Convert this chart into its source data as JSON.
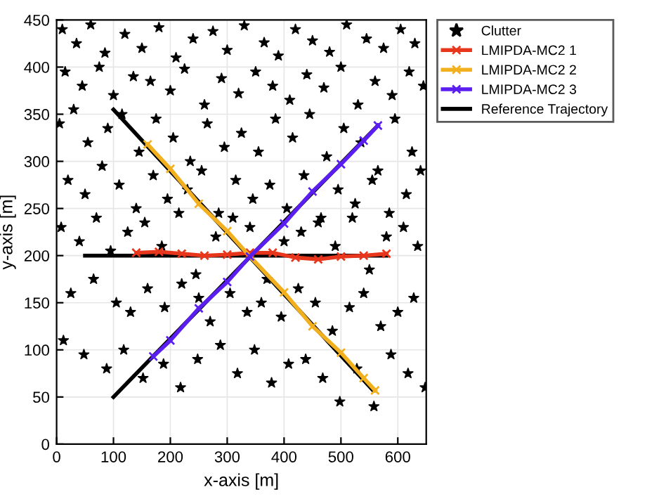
{
  "chart_data": {
    "type": "scatter",
    "xlabel": "x-axis [m]",
    "ylabel": "y-axis [m]",
    "xlim": [
      0,
      650
    ],
    "ylim": [
      0,
      450
    ],
    "xticks": [
      0,
      100,
      200,
      300,
      400,
      500,
      600
    ],
    "yticks": [
      0,
      50,
      100,
      150,
      200,
      250,
      300,
      350,
      400,
      450
    ],
    "grid": true,
    "legend": "top right",
    "series": [
      {
        "name": "Clutter",
        "marker": "star",
        "color": "#000000",
        "x": [
          10,
          35,
          60,
          85,
          120,
          150,
          180,
          210,
          240,
          275,
          300,
          330,
          365,
          390,
          420,
          450,
          480,
          510,
          545,
          575,
          605,
          630,
          15,
          45,
          75,
          100,
          135,
          165,
          200,
          225,
          260,
          290,
          320,
          350,
          380,
          410,
          440,
          470,
          500,
          530,
          560,
          590,
          620,
          645,
          5,
          30,
          55,
          90,
          115,
          145,
          175,
          205,
          235,
          265,
          295,
          325,
          355,
          385,
          415,
          445,
          475,
          505,
          535,
          565,
          595,
          625,
          20,
          50,
          80,
          110,
          140,
          170,
          195,
          230,
          255,
          285,
          315,
          345,
          375,
          405,
          435,
          465,
          495,
          525,
          555,
          585,
          615,
          640,
          8,
          40,
          70,
          95,
          125,
          155,
          185,
          215,
          245,
          280,
          310,
          340,
          370,
          400,
          430,
          460,
          490,
          520,
          550,
          580,
          610,
          635,
          25,
          65,
          105,
          130,
          160,
          190,
          220,
          250,
          270,
          305,
          335,
          360,
          395,
          425,
          455,
          485,
          515,
          540,
          570,
          600,
          628,
          12,
          48,
          88,
          118,
          152,
          188,
          218,
          248,
          288,
          318,
          348,
          378,
          408,
          438,
          468,
          498,
          528,
          558,
          588,
          618,
          648
        ],
        "values": [
          440,
          425,
          445,
          415,
          435,
          420,
          442,
          410,
          430,
          438,
          418,
          444,
          426,
          412,
          440,
          428,
          416,
          445,
          430,
          420,
          440,
          425,
          395,
          380,
          400,
          370,
          390,
          385,
          375,
          398,
          360,
          388,
          372,
          395,
          380,
          365,
          392,
          378,
          400,
          360,
          385,
          370,
          395,
          380,
          340,
          355,
          320,
          335,
          350,
          310,
          345,
          325,
          300,
          340,
          315,
          330,
          310,
          345,
          325,
          350,
          305,
          335,
          320,
          290,
          345,
          310,
          280,
          265,
          295,
          275,
          250,
          285,
          260,
          270,
          290,
          245,
          280,
          260,
          275,
          250,
          285,
          240,
          270,
          255,
          280,
          245,
          265,
          290,
          230,
          215,
          240,
          205,
          225,
          235,
          210,
          245,
          180,
          220,
          240,
          230,
          175,
          215,
          225,
          235,
          210,
          240,
          185,
          220,
          230,
          210,
          160,
          175,
          150,
          140,
          165,
          145,
          170,
          155,
          130,
          160,
          140,
          150,
          135,
          165,
          150,
          120,
          145,
          160,
          125,
          140,
          155,
          110,
          95,
          80,
          100,
          70,
          85,
          60,
          90,
          105,
          75,
          100,
          65,
          85,
          90,
          70,
          45,
          80,
          40,
          95,
          75,
          60
        ]
      },
      {
        "name": "LMIPDA-MC2 1",
        "type": "line",
        "marker": "cross",
        "color": "#e8361c",
        "x": [
          140,
          180,
          220,
          260,
          300,
          340,
          380,
          420,
          460,
          500,
          540,
          580
        ],
        "values": [
          203,
          204,
          202,
          200,
          201,
          203,
          203,
          198,
          196,
          199,
          200,
          202
        ]
      },
      {
        "name": "LMIPDA-MC2 2",
        "type": "line",
        "marker": "cross",
        "color": "#f2b01e",
        "x": [
          160,
          200,
          250,
          300,
          340,
          400,
          450,
          500,
          540,
          560
        ],
        "values": [
          318,
          292,
          255,
          226,
          199,
          161,
          125,
          97,
          70,
          57
        ]
      },
      {
        "name": "LMIPDA-MC2 3",
        "type": "line",
        "marker": "cross",
        "color": "#5a1ef0",
        "x": [
          170,
          200,
          250,
          300,
          340,
          400,
          450,
          500,
          540,
          565
        ],
        "values": [
          93,
          110,
          144,
          172,
          199,
          234,
          268,
          297,
          322,
          338
        ]
      },
      {
        "name": "Reference Trajectory",
        "type": "line",
        "marker": "none",
        "color": "#000000",
        "x": [
          50,
          580,
          null,
          100,
          555,
          null,
          100,
          565
        ],
        "values": [
          200,
          200,
          null,
          355,
          58,
          null,
          50,
          338
        ]
      }
    ]
  }
}
